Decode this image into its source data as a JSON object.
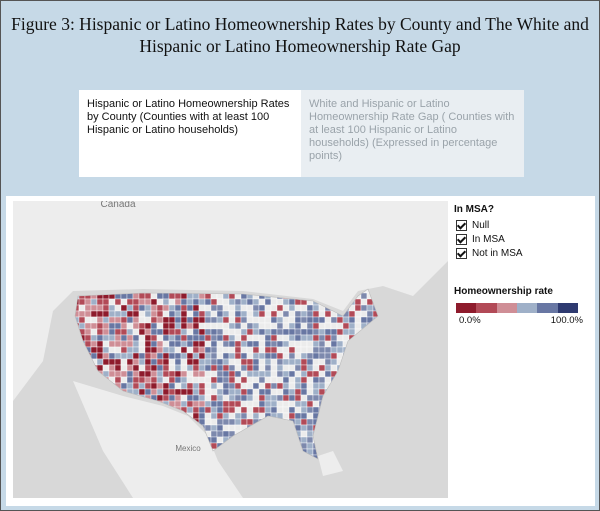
{
  "header": {
    "title": "Figure 3: Hispanic or Latino Homeownership Rates by County and The White and Hispanic or Latino Homeownership Rate Gap"
  },
  "tabs": [
    "Hispanic or Latino Homeownership Rates by County (Counties with at least 100 Hispanic or Latino households)",
    "White and Hispanic or Latino Homeownership Rate Gap ( Counties with at least 100 Hispanic or Latino households) (Expressed in percentage points)"
  ],
  "map": {
    "labels": [
      "Canada",
      "Mexico"
    ]
  },
  "legend": {
    "filter_title": "In MSA?",
    "filters": [
      "Null",
      "In MSA",
      "Not in MSA"
    ],
    "color_title": "Homeownership rate",
    "color_min": "0.0%",
    "color_max": "100.0%"
  }
}
